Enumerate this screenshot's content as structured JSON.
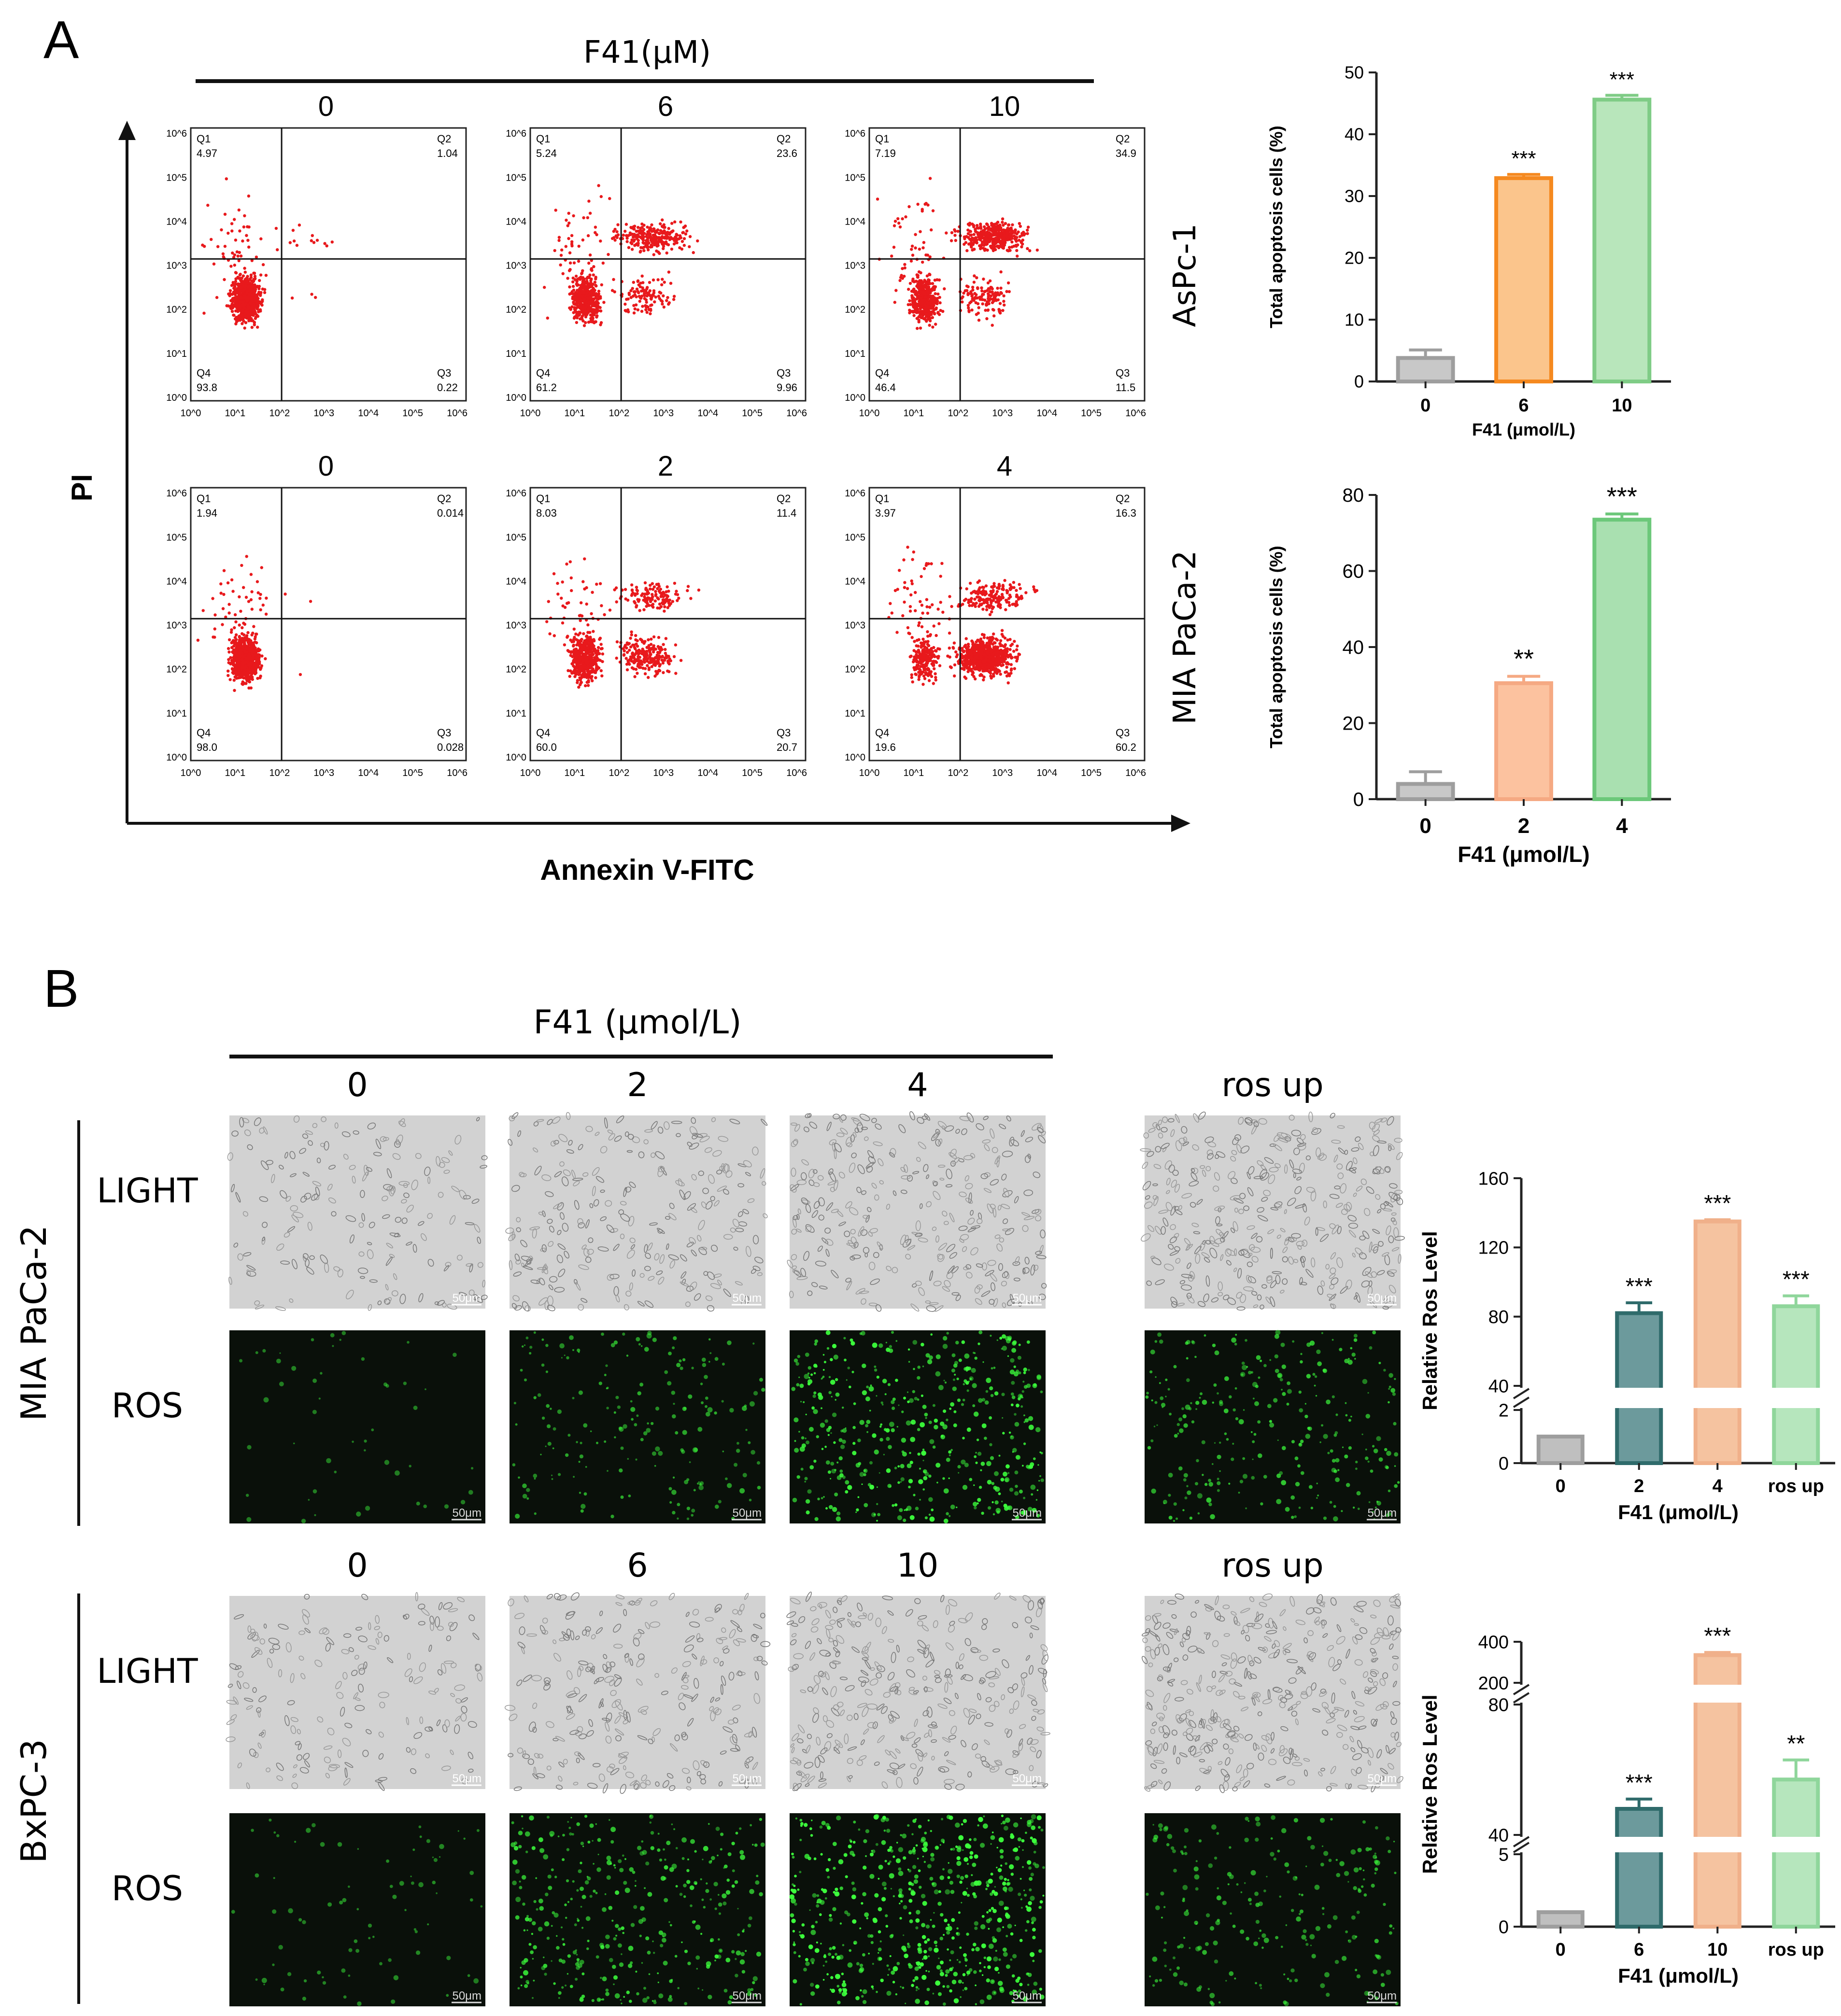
{
  "panelA": {
    "letter": "A",
    "treatment": "F41(μM)",
    "y_axis": "PI",
    "x_axis": "Annexin V-FITC",
    "rows": [
      {
        "cell_line": "AsPc-1",
        "doses": [
          "0",
          "6",
          "10"
        ],
        "plots": [
          {
            "q1": "4.97",
            "q2": "1.04",
            "q3": "0.22",
            "q4": "93.8"
          },
          {
            "q1": "5.24",
            "q2": "23.6",
            "q3": "9.96",
            "q4": "61.2"
          },
          {
            "q1": "7.19",
            "q2": "34.9",
            "q3": "11.5",
            "q4": "46.4"
          }
        ]
      },
      {
        "cell_line": "MIA PaCa-2",
        "doses": [
          "0",
          "2",
          "4"
        ],
        "plots": [
          {
            "q1": "1.94",
            "q2": "0.014",
            "q3": "0.028",
            "q4": "98.0"
          },
          {
            "q1": "8.03",
            "q2": "11.4",
            "q3": "20.7",
            "q4": "60.0"
          },
          {
            "q1": "3.97",
            "q2": "16.3",
            "q3": "60.2",
            "q4": "19.6"
          }
        ]
      }
    ],
    "quadrant_labels": [
      "Q1",
      "Q2",
      "Q3",
      "Q4"
    ],
    "flow_ticks": [
      "10^0",
      "10^1",
      "10^2",
      "10^3",
      "10^4",
      "10^5",
      "10^6"
    ],
    "dot_color": "#e8191c"
  },
  "panelB": {
    "letter": "B",
    "treatment": "F41 (μmol/L)",
    "row_labels": [
      "LIGHT",
      "ROS"
    ],
    "scale_bar": "50μm",
    "groups": [
      {
        "cell_line": "MIA PaCa-2",
        "doses": [
          "0",
          "2",
          "4"
        ],
        "control": "ros up",
        "ros_intensity": [
          0.05,
          0.3,
          0.8,
          0.45
        ]
      },
      {
        "cell_line": "BxPC-3",
        "doses": [
          "0",
          "6",
          "10"
        ],
        "control": "ros up",
        "ros_intensity": [
          0.1,
          0.6,
          1.0,
          0.35
        ]
      }
    ],
    "ros_color": "#3cff3c"
  },
  "chart_data": [
    {
      "type": "bar",
      "title": "AsPc-1 apoptosis",
      "categories": [
        "0",
        "6",
        "10"
      ],
      "values": [
        3.8,
        32.9,
        45.6
      ],
      "errors": [
        1.3,
        0.6,
        0.7
      ],
      "significance": [
        "",
        "***",
        "***"
      ],
      "ylabel": "Total apoptosis cells  (%)",
      "xlabel": "F41 (μmol/L)",
      "ylim": [
        0,
        50
      ],
      "yticks": [
        "0",
        "10",
        "20",
        "30",
        "40",
        "50"
      ],
      "colors": [
        "#9e9e9e",
        "#f5891f",
        "#7fcc86"
      ],
      "fills": [
        "#c8c8c8",
        "#fbc58c",
        "#b8e6bb"
      ]
    },
    {
      "type": "bar",
      "title": "MIA PaCa-2 apoptosis",
      "categories": [
        "0",
        "2",
        "4"
      ],
      "values": [
        4.0,
        30.5,
        73.5
      ],
      "errors": [
        3.2,
        1.8,
        1.5
      ],
      "significance": [
        "",
        "**",
        "***"
      ],
      "ylabel": "Total apoptosis cells  (%)",
      "xlabel": "F41 (μmol/L)",
      "ylim": [
        0,
        80
      ],
      "yticks": [
        "0",
        "20",
        "40",
        "60",
        "80"
      ],
      "colors": [
        "#9e9e9e",
        "#f5a983",
        "#6cc87a"
      ],
      "fills": [
        "#c8c8c8",
        "#fcc29f",
        "#a9e0b0"
      ]
    },
    {
      "type": "bar",
      "title": "MIA PaCa-2 ROS",
      "categories": [
        "0",
        "2",
        "4",
        "ros up"
      ],
      "values": [
        1,
        82,
        135,
        86
      ],
      "errors": [
        0,
        6,
        1,
        6
      ],
      "significance": [
        "",
        "***",
        "***",
        "***"
      ],
      "ylabel": "Relative Ros Level",
      "xlabel": "F41 (μmol/L)",
      "broken_axis": {
        "lower": [
          0,
          2
        ],
        "upper": [
          40,
          160
        ]
      },
      "yticks_lower": [
        "0",
        "2"
      ],
      "yticks_upper": [
        "40",
        "80",
        "120",
        "160"
      ],
      "colors": [
        "#9e9e9e",
        "#2f6b6b",
        "#f0b08a",
        "#8fd69b"
      ],
      "fills": [
        "#bfbfbf",
        "#6c9a9c",
        "#f5c3a0",
        "#b6e6bd"
      ]
    },
    {
      "type": "bar",
      "title": "BxPC-3 ROS",
      "categories": [
        "0",
        "6",
        "10",
        "ros up"
      ],
      "values": [
        1,
        48,
        335,
        57
      ],
      "errors": [
        0,
        3,
        13,
        6
      ],
      "significance": [
        "",
        "***",
        "***",
        "**"
      ],
      "ylabel": "Relative Ros Level",
      "xlabel": "F41 (μmol/L)",
      "broken_axis": {
        "lower": [
          0,
          5
        ],
        "middle": [
          40,
          80
        ],
        "upper": [
          200,
          400
        ]
      },
      "yticks_lower": [
        "0",
        "5"
      ],
      "yticks_middle": [
        "40",
        "80"
      ],
      "yticks_upper": [
        "200",
        "400"
      ],
      "colors": [
        "#9e9e9e",
        "#2f6b6b",
        "#f0b08a",
        "#8fd69b"
      ],
      "fills": [
        "#bfbfbf",
        "#6c9a9c",
        "#f5c3a0",
        "#b6e6bd"
      ]
    }
  ]
}
